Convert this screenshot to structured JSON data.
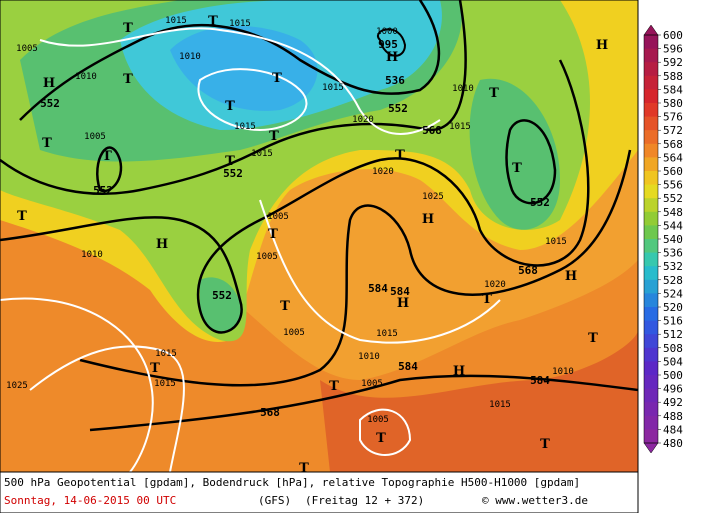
{
  "map": {
    "contour_labels": [
      "552",
      "552",
      "552",
      "536",
      "552",
      "568",
      "552",
      "568",
      "552",
      "584",
      "584",
      "584",
      "584",
      "568",
      "1015",
      "1015",
      "1010",
      "1005",
      "1010",
      "1000",
      "995",
      "1015",
      "1010",
      "1015",
      "1020",
      "1015",
      "1015",
      "1005",
      "1020",
      "1025",
      "1015",
      "1020",
      "1010",
      "1005",
      "1005",
      "1005",
      "1015",
      "1010",
      "1005",
      "1015",
      "1010",
      "1015",
      "1015",
      "1025",
      "1005"
    ],
    "pressure_centers": [
      "T",
      "T",
      "H",
      "T",
      "T",
      "H",
      "T",
      "H",
      "T",
      "T",
      "T",
      "T",
      "T",
      "T",
      "T",
      "H",
      "H",
      "T",
      "T",
      "T",
      "H",
      "T",
      "H",
      "T",
      "T",
      "H",
      "T",
      "T",
      "T",
      "T"
    ],
    "legend": {
      "labels": [
        600,
        596,
        592,
        588,
        584,
        580,
        576,
        572,
        568,
        564,
        560,
        556,
        552,
        548,
        544,
        540,
        536,
        532,
        528,
        524,
        520,
        516,
        512,
        508,
        504,
        500,
        496,
        492,
        488,
        484,
        480
      ]
    },
    "footer": {
      "description": "500 hPa Geopotential [gpdam], Bodendruck [hPa], relative Topographie H500-H1000 [gpdam]",
      "date": "Sonntag, 14-06-2015  00 UTC",
      "model": "(GFS)",
      "run": "(Freitag 12 + 372)",
      "credit": "© www.wetter3.de"
    }
  }
}
